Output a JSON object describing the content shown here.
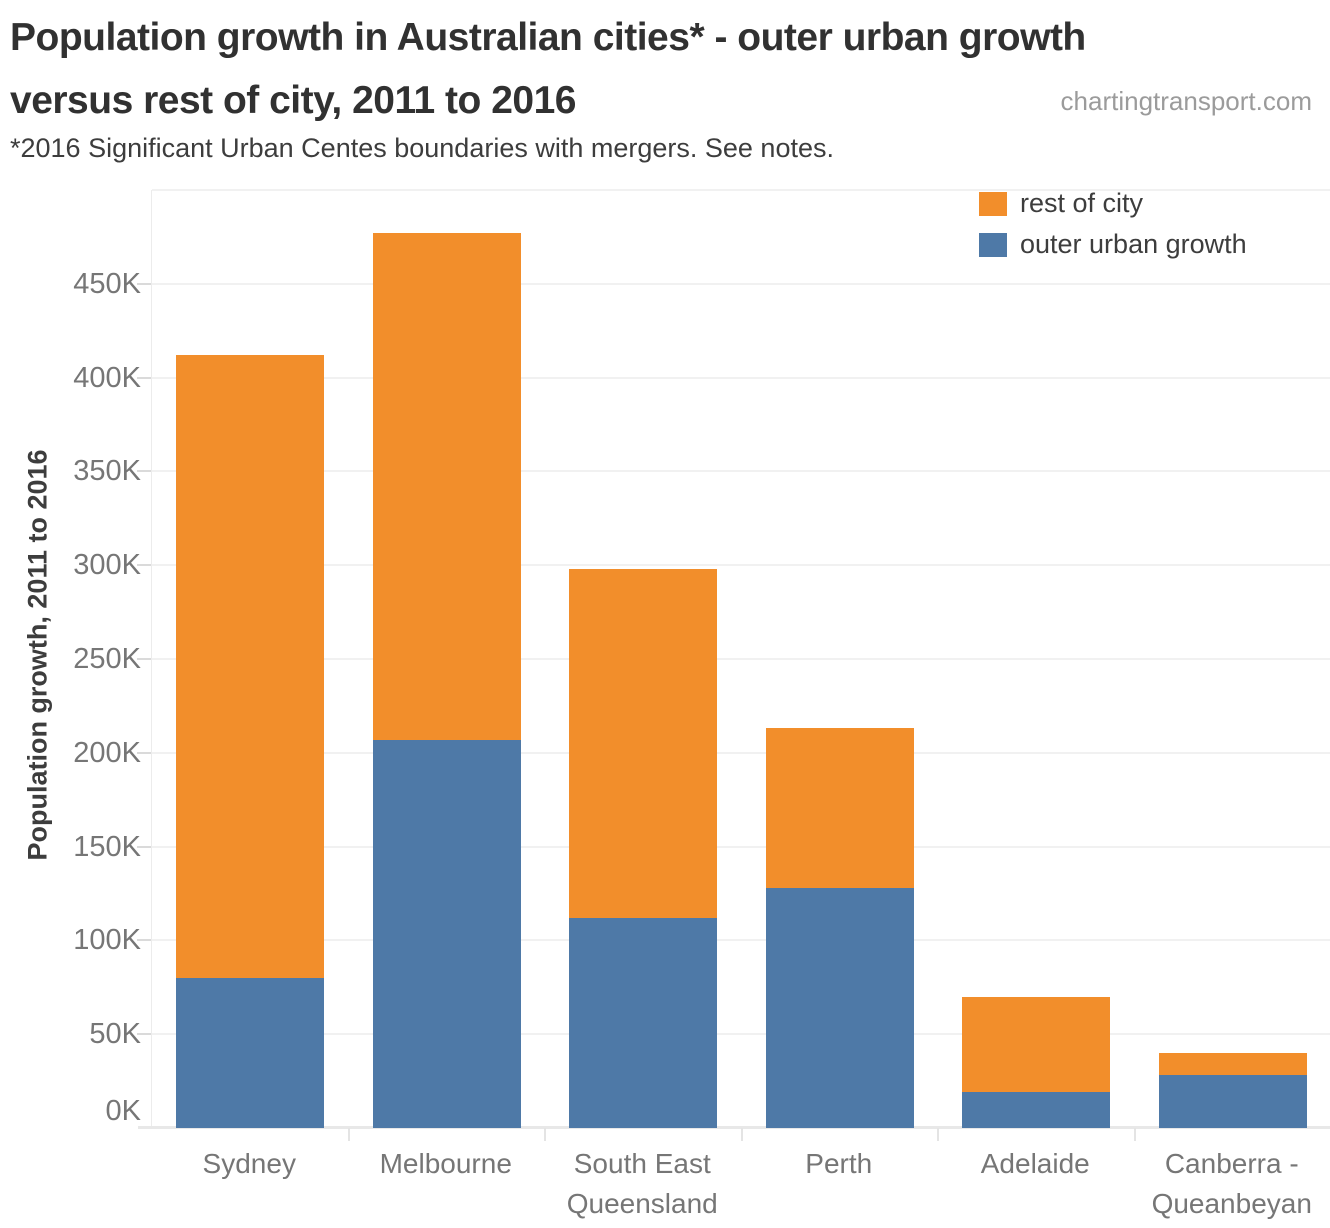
{
  "header": {
    "title_lines": [
      "Population growth in Australian cities* - outer urban growth",
      "versus rest of city, 2011 to 2016"
    ],
    "source": "chartingtransport.com",
    "subtitle": "*2016 Significant Urban Centes boundaries with mergers. See notes."
  },
  "legend": {
    "items": [
      {
        "label": "rest of city",
        "color": "#F28E2B"
      },
      {
        "label": "outer urban growth",
        "color": "#4E79A7"
      }
    ]
  },
  "chart_data": {
    "type": "bar",
    "stacked": true,
    "title": "Population growth in Australian cities* - outer urban growth versus rest of city, 2011 to 2016",
    "units": "thousands of people",
    "categories": [
      "Sydney",
      "Melbourne",
      "South East Queensland",
      "Perth",
      "Adelaide",
      "Canberra - Queanbeyan"
    ],
    "series": [
      {
        "name": "outer urban growth",
        "color": "#4E79A7",
        "values": [
          80,
          207,
          112,
          128,
          19,
          28
        ]
      },
      {
        "name": "rest of city",
        "color": "#F28E2B",
        "values": [
          332,
          270,
          186,
          85,
          51,
          12
        ]
      }
    ],
    "totals": [
      412,
      477,
      298,
      213,
      70,
      40
    ],
    "xlabel": "",
    "ylabel": "Population growth, 2011 to 2016",
    "ylim": [
      0,
      500
    ],
    "ytick_step": 50,
    "ytick_labels": [
      "0K",
      "50K",
      "100K",
      "150K",
      "200K",
      "250K",
      "300K",
      "350K",
      "400K",
      "450K"
    ],
    "grid": true,
    "legend_position": "top-right"
  }
}
